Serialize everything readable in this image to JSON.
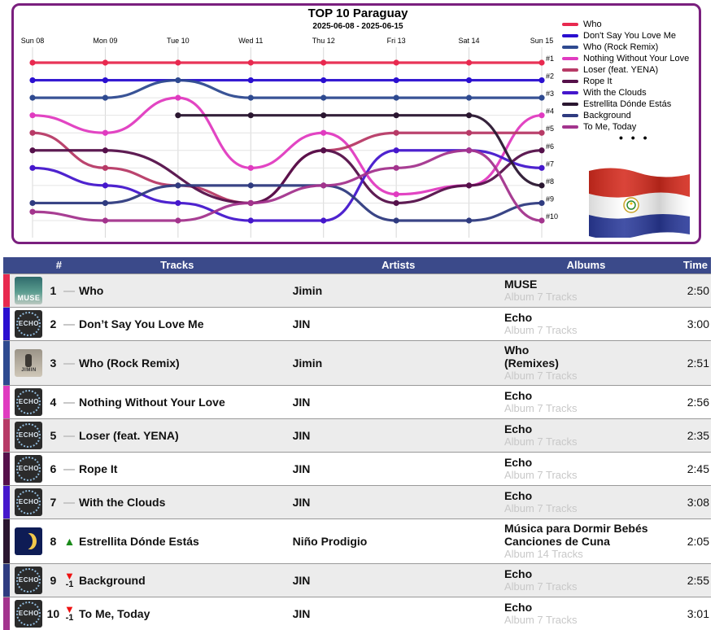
{
  "chart_title": "TOP 10 Paraguay",
  "chart_subtitle": "2025-06-08 - 2025-06-15",
  "legend_more": "• • •",
  "chart_data": {
    "type": "line",
    "title": "TOP 10 Paraguay",
    "subtitle": "2025-06-08 - 2025-06-15",
    "x": [
      "Sun 08",
      "Mon 09",
      "Tue 10",
      "Wed 11",
      "Thu 12",
      "Fri 13",
      "Sat 14",
      "Sun 15"
    ],
    "y_ticks": [
      "#1",
      "#2",
      "#3",
      "#4",
      "#5",
      "#6",
      "#7",
      "#8",
      "#9",
      "#10"
    ],
    "ylim": [
      1,
      10
    ],
    "y_reversed": true,
    "legend_position": "right",
    "series": [
      {
        "name": "Who",
        "color": "#e8294f",
        "values": [
          1,
          1,
          1,
          1,
          1,
          1,
          1,
          1
        ]
      },
      {
        "name": "Don't Say You Love Me",
        "color": "#2a0fd0",
        "values": [
          2,
          2,
          null,
          2,
          2,
          2,
          2,
          2
        ]
      },
      {
        "name": "Who (Rock Remix)",
        "color": "#2e4a90",
        "values": [
          3,
          3,
          2,
          3,
          3,
          3,
          3,
          3
        ]
      },
      {
        "name": "Nothing Without Your Love",
        "color": "#e03bc0",
        "values": [
          4,
          5,
          3,
          7,
          5,
          8.5,
          8,
          4
        ]
      },
      {
        "name": "Loser (feat. YENA)",
        "color": "#b73a66",
        "values": [
          5,
          7,
          8,
          9,
          6,
          5,
          5,
          5
        ]
      },
      {
        "name": "Rope It",
        "color": "#55104a",
        "values": [
          6,
          6,
          null,
          9,
          6,
          9,
          8,
          6
        ]
      },
      {
        "name": "With the Clouds",
        "color": "#4517cc",
        "values": [
          7,
          8,
          9,
          10,
          10,
          6,
          6,
          7
        ]
      },
      {
        "name": "Estrellita Dónde Estás",
        "color": "#2a1630",
        "values": [
          null,
          null,
          4,
          4,
          4,
          4,
          4,
          8
        ]
      },
      {
        "name": "Background",
        "color": "#2f3b80",
        "values": [
          9,
          9,
          8,
          8,
          8,
          10,
          10,
          9
        ]
      },
      {
        "name": "To Me, Today",
        "color": "#a3348d",
        "values": [
          9.5,
          10,
          10,
          9,
          8,
          7,
          6,
          10
        ]
      }
    ]
  },
  "table": {
    "headers": {
      "rank": "#",
      "tracks": "Tracks",
      "artists": "Artists",
      "albums": "Albums",
      "time": "Time"
    },
    "rows": [
      {
        "rank": "1",
        "change": "flat",
        "delta": "",
        "track": "Who",
        "artist": "Jimin",
        "album": "MUSE",
        "album_sub": "Album 7 Tracks",
        "time": "2:50",
        "color": "#e8294f",
        "cover": "muse",
        "cover_text": "MUSE"
      },
      {
        "rank": "2",
        "change": "flat",
        "delta": "",
        "track": "Don’t Say You Love Me",
        "artist": "JIN",
        "album": "Echo",
        "album_sub": "Album 7 Tracks",
        "time": "3:00",
        "color": "#2a0fd0",
        "cover": "echo",
        "cover_text": "ECHO"
      },
      {
        "rank": "3",
        "change": "flat",
        "delta": "",
        "track": "Who (Rock Remix)",
        "artist": "Jimin",
        "album": "Who\n(Remixes)",
        "album_sub": "Album 7 Tracks",
        "time": "2:51",
        "color": "#2e4a90",
        "cover": "rock",
        "cover_text": "JIMIN"
      },
      {
        "rank": "4",
        "change": "flat",
        "delta": "",
        "track": "Nothing Without Your Love",
        "artist": "JIN",
        "album": "Echo",
        "album_sub": "Album 7 Tracks",
        "time": "2:56",
        "color": "#e03bc0",
        "cover": "echo",
        "cover_text": "ECHO"
      },
      {
        "rank": "5",
        "change": "flat",
        "delta": "",
        "track": "Loser (feat. YENA)",
        "artist": "JIN",
        "album": "Echo",
        "album_sub": "Album 7 Tracks",
        "time": "2:35",
        "color": "#b73a66",
        "cover": "echo",
        "cover_text": "ECHO"
      },
      {
        "rank": "6",
        "change": "flat",
        "delta": "",
        "track": "Rope It",
        "artist": "JIN",
        "album": "Echo",
        "album_sub": "Album 7 Tracks",
        "time": "2:45",
        "color": "#55104a",
        "cover": "echo",
        "cover_text": "ECHO"
      },
      {
        "rank": "7",
        "change": "flat",
        "delta": "",
        "track": "With the Clouds",
        "artist": "JIN",
        "album": "Echo",
        "album_sub": "Album 7 Tracks",
        "time": "3:08",
        "color": "#4517cc",
        "cover": "echo",
        "cover_text": "ECHO"
      },
      {
        "rank": "8",
        "change": "up",
        "delta": "",
        "track": "Estrellita Dónde Estás",
        "artist": "Niño Prodigio",
        "album": "Música para Dormir Bebés Canciones de Cuna",
        "album_sub": "Album 14 Tracks",
        "time": "2:05",
        "color": "#2a1630",
        "cover": "nino",
        "cover_text": ""
      },
      {
        "rank": "9",
        "change": "down",
        "delta": "-1",
        "track": "Background",
        "artist": "JIN",
        "album": "Echo",
        "album_sub": "Album 7 Tracks",
        "time": "2:55",
        "color": "#2f3b80",
        "cover": "echo",
        "cover_text": "ECHO"
      },
      {
        "rank": "10",
        "change": "down",
        "delta": "-1",
        "track": "To Me, Today",
        "artist": "JIN",
        "album": "Echo",
        "album_sub": "Album 7 Tracks",
        "time": "3:01",
        "color": "#a3348d",
        "cover": "echo",
        "cover_text": "ECHO"
      }
    ]
  }
}
